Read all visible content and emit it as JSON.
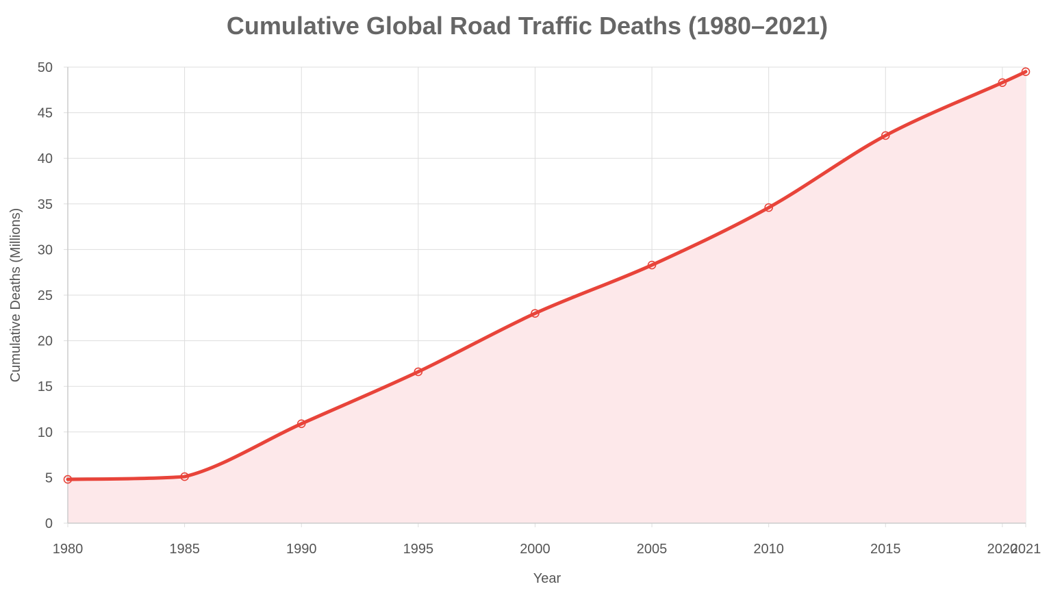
{
  "colors": {
    "line": "#e8443a",
    "area": "#fde8ea",
    "title": "#666666",
    "grid": "#dddddd"
  },
  "chart_data": {
    "type": "area",
    "title": "Cumulative Global Road Traffic Deaths (1980–2021)",
    "xlabel": "Year",
    "ylabel": "Cumulative Deaths (Millions)",
    "x": [
      1980,
      1985,
      1990,
      1995,
      2000,
      2005,
      2010,
      2015,
      2020,
      2021
    ],
    "series": [
      {
        "values": [
          4.8,
          5.1,
          10.9,
          16.6,
          23.0,
          28.3,
          34.6,
          42.5,
          48.3,
          49.5
        ]
      }
    ],
    "xlim": [
      1980,
      2021
    ],
    "ylim": [
      0,
      50
    ],
    "y_ticks": [
      0,
      5,
      10,
      15,
      20,
      25,
      30,
      35,
      40,
      45,
      50
    ],
    "x_ticks": [
      1980,
      1985,
      1990,
      1995,
      2000,
      2005,
      2010,
      2015,
      2020,
      2021
    ],
    "grid": true,
    "legend": "none"
  }
}
